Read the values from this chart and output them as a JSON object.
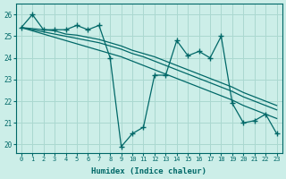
{
  "xlabel": "Humidex (Indice chaleur)",
  "background_color": "#cceee8",
  "grid_color": "#aad8d0",
  "line_color": "#006868",
  "xlim": [
    -0.5,
    23.5
  ],
  "ylim": [
    19.6,
    26.5
  ],
  "xticks": [
    0,
    1,
    2,
    3,
    4,
    5,
    6,
    7,
    8,
    9,
    10,
    11,
    12,
    13,
    14,
    15,
    16,
    17,
    18,
    19,
    20,
    21,
    22,
    23
  ],
  "yticks": [
    20,
    21,
    22,
    23,
    24,
    25,
    26
  ],
  "jagged": [
    25.4,
    26.0,
    25.3,
    25.3,
    25.3,
    25.5,
    25.3,
    25.5,
    24.0,
    19.9,
    20.5,
    20.8,
    23.2,
    23.2,
    24.8,
    24.1,
    24.3,
    24.0,
    25.0,
    21.9,
    21.0,
    21.1,
    21.4,
    20.5
  ],
  "line1": [
    25.4,
    25.35,
    25.3,
    25.25,
    25.1,
    25.05,
    24.95,
    24.85,
    24.7,
    24.55,
    24.35,
    24.2,
    24.05,
    23.85,
    23.65,
    23.45,
    23.25,
    23.05,
    22.85,
    22.65,
    22.4,
    22.2,
    22.0,
    21.8
  ],
  "line2": [
    25.4,
    25.3,
    25.2,
    25.1,
    25.0,
    24.9,
    24.8,
    24.7,
    24.55,
    24.4,
    24.2,
    24.05,
    23.85,
    23.65,
    23.45,
    23.25,
    23.05,
    22.85,
    22.65,
    22.45,
    22.2,
    22.0,
    21.8,
    21.6
  ],
  "line3": [
    25.4,
    25.25,
    25.1,
    24.95,
    24.8,
    24.65,
    24.5,
    24.35,
    24.2,
    24.05,
    23.85,
    23.65,
    23.45,
    23.25,
    23.05,
    22.85,
    22.65,
    22.45,
    22.25,
    22.05,
    21.8,
    21.6,
    21.4,
    21.2
  ]
}
